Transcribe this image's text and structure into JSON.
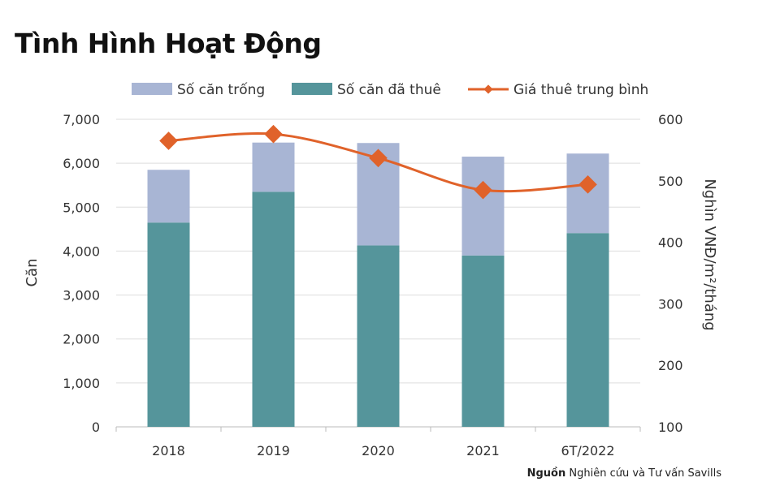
{
  "chart_data": {
    "type": "bar",
    "title": "Tình Hình Hoạt Động",
    "categories": [
      "2018",
      "2019",
      "2020",
      "2021",
      "6T/2022"
    ],
    "series": [
      {
        "name": "Số căn đã thuê",
        "type": "stacked-bar",
        "axis": "left",
        "color": "#55959b",
        "values": [
          4650,
          5350,
          4130,
          3900,
          4410
        ]
      },
      {
        "name": "Số căn trống",
        "type": "stacked-bar",
        "axis": "left",
        "color": "#a8b5d4",
        "values": [
          1200,
          1120,
          2330,
          2250,
          1810
        ]
      },
      {
        "name": "Giá thuê trung bình",
        "type": "line",
        "axis": "right",
        "color": "#e0622a",
        "values": [
          565,
          576,
          537,
          485,
          494
        ]
      }
    ],
    "legend": [
      "Số căn trống",
      "Số căn đã thuê",
      "Giá thuê trung bình"
    ],
    "legend_position": "top",
    "ylabel": "Căn",
    "ylabel_right": "Nghìn VNĐ/m²/tháng",
    "ylim": [
      0,
      7000
    ],
    "ylim_right": [
      100,
      600
    ],
    "yticks": [
      "0",
      "1,000",
      "2,000",
      "3,000",
      "4,000",
      "5,000",
      "6,000",
      "7,000"
    ],
    "yticks_right": [
      "100",
      "200",
      "300",
      "400",
      "500",
      "600"
    ],
    "grid": true
  },
  "source": {
    "label": "Nguồn",
    "text": "Nghiên cứu và Tư vấn Savills"
  }
}
